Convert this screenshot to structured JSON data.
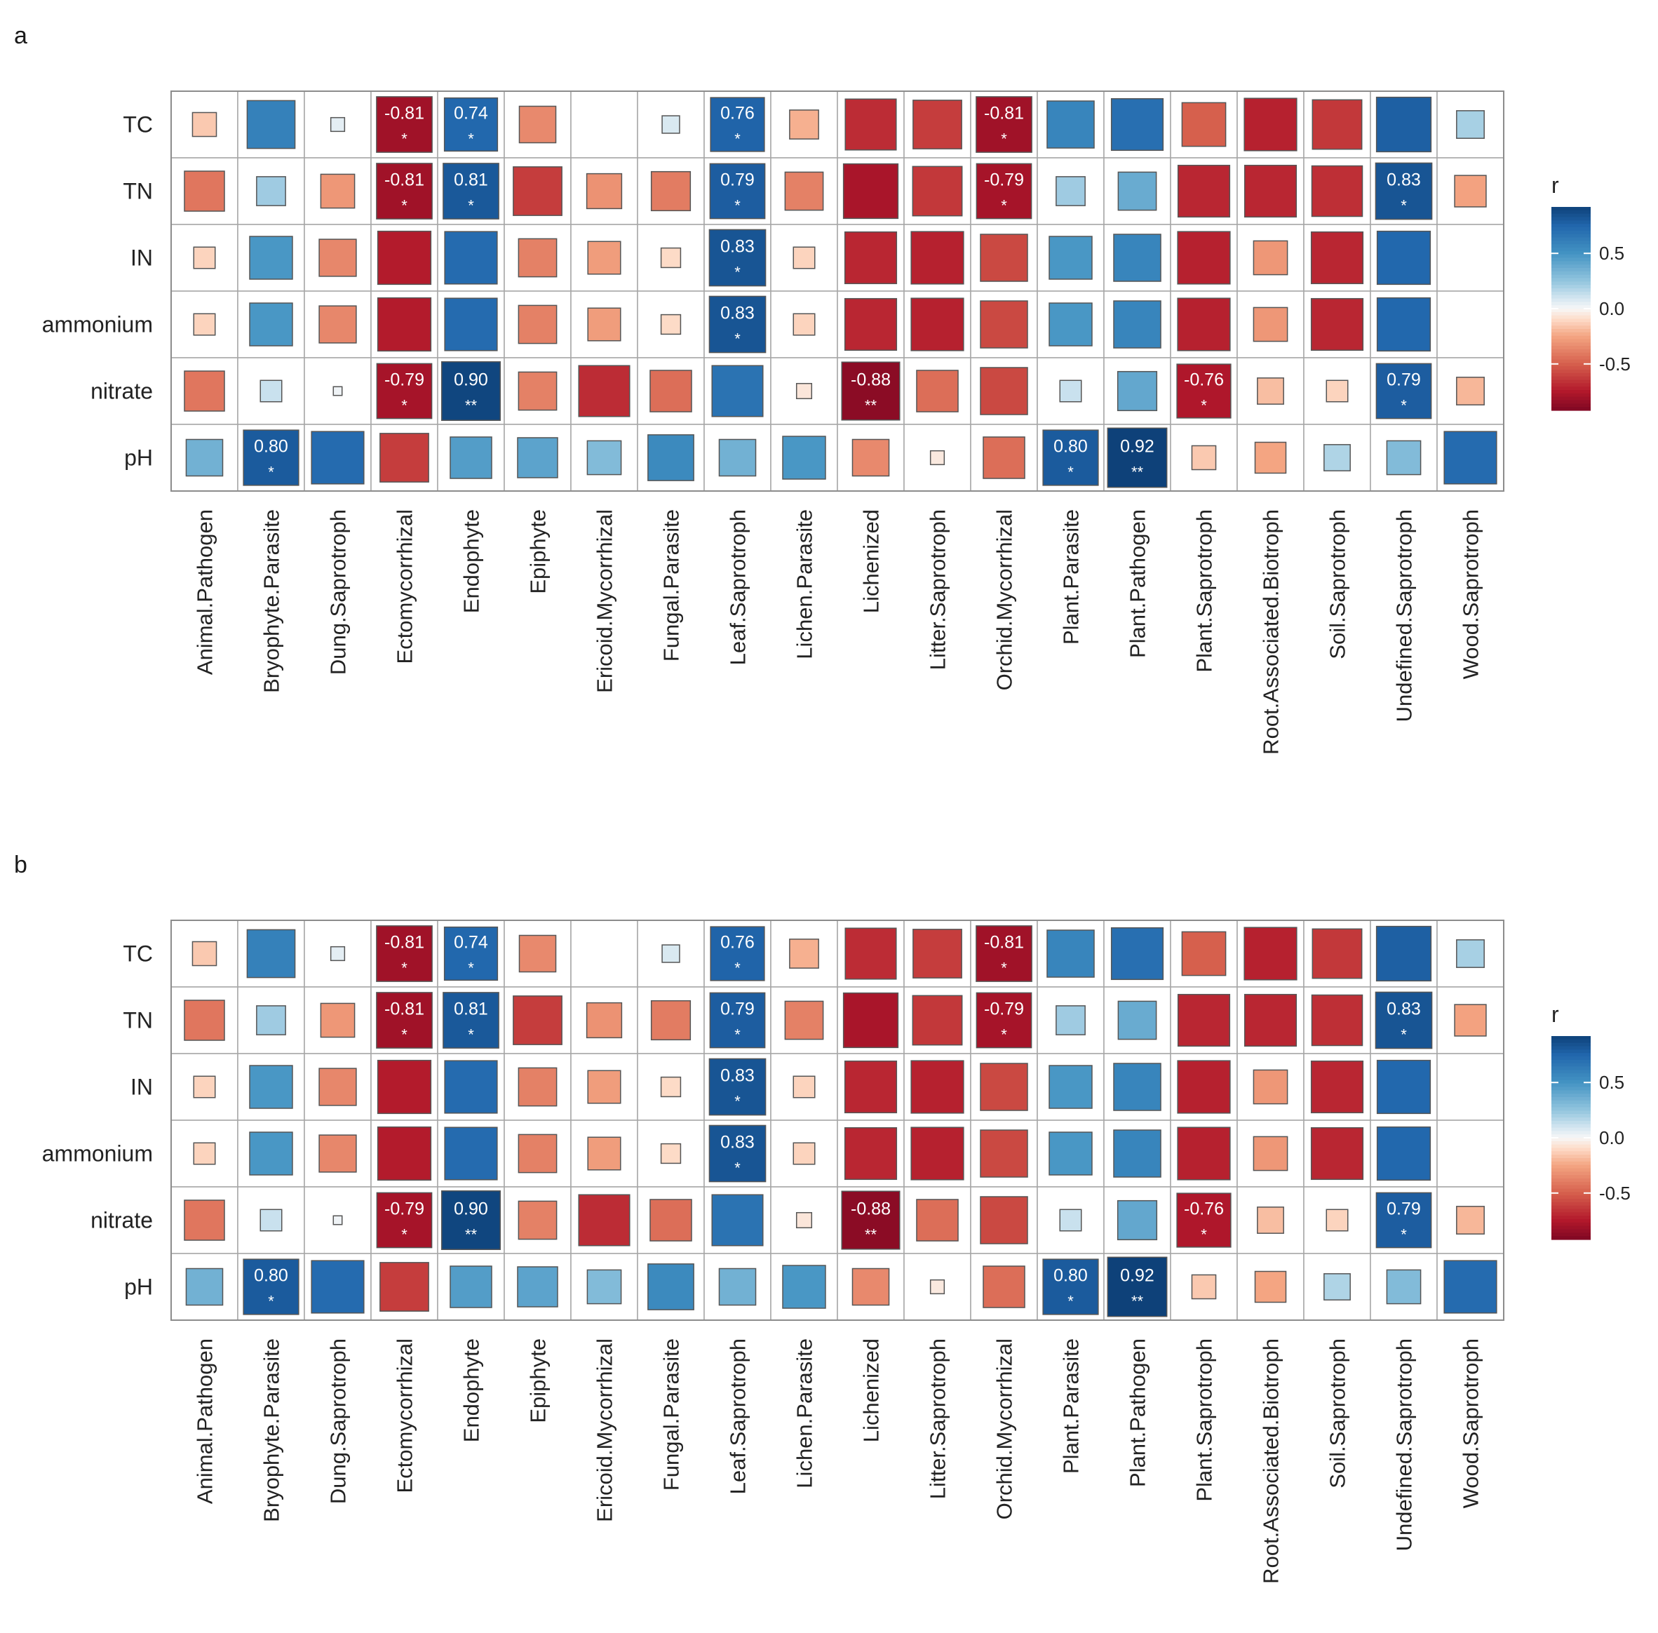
{
  "chart_data": [
    {
      "type": "heatmap",
      "panel_label": "a",
      "rows": [
        "TC",
        "TN",
        "IN",
        "ammonium",
        "nitrate",
        "pH"
      ],
      "columns": [
        "Animal.Pathogen",
        "Bryophyte.Parasite",
        "Dung.Saprotroph",
        "Ectomycorrhizal",
        "Endophyte",
        "Epiphyte",
        "Ericoid.Mycorrhizal",
        "Fungal.Parasite",
        "Leaf.Saprotroph",
        "Lichen.Parasite",
        "Lichenized",
        "Litter.Saprotroph",
        "Orchid.Mycorrhizal",
        "Plant.Parasite",
        "Plant.Pathogen",
        "Plant.Saprotroph",
        "Root.Associated.Biotroph",
        "Soil.Saprotroph",
        "Undefined.Saprotroph",
        "Wood.Saprotroph"
      ],
      "values": [
        [
          -0.15,
          0.6,
          0.05,
          -0.81,
          0.74,
          -0.35,
          0,
          0.08,
          0.76,
          -0.22,
          -0.68,
          -0.62,
          -0.81,
          0.58,
          0.7,
          -0.5,
          -0.72,
          -0.64,
          0.78,
          0.2
        ],
        [
          -0.42,
          0.22,
          -0.3,
          -0.81,
          0.81,
          -0.62,
          -0.32,
          -0.4,
          0.79,
          -0.38,
          -0.78,
          -0.64,
          -0.79,
          0.22,
          0.38,
          -0.7,
          -0.7,
          -0.67,
          0.83,
          -0.26
        ],
        [
          -0.12,
          0.48,
          -0.36,
          -0.74,
          0.72,
          -0.38,
          -0.28,
          -0.1,
          0.83,
          -0.12,
          -0.7,
          -0.72,
          -0.58,
          0.48,
          0.58,
          -0.72,
          -0.3,
          -0.7,
          0.74,
          0
        ],
        [
          -0.12,
          0.48,
          -0.36,
          -0.74,
          0.72,
          -0.38,
          -0.28,
          -0.1,
          0.83,
          -0.12,
          -0.7,
          -0.72,
          -0.58,
          0.48,
          0.58,
          -0.72,
          -0.3,
          -0.7,
          0.74,
          0
        ],
        [
          -0.42,
          0.12,
          0.02,
          -0.79,
          0.9,
          -0.38,
          -0.68,
          -0.45,
          0.68,
          -0.06,
          -0.88,
          -0.45,
          -0.58,
          0.12,
          0.4,
          -0.76,
          -0.18,
          -0.12,
          0.79,
          -0.2
        ],
        [
          0.35,
          0.8,
          0.72,
          -0.62,
          0.45,
          0.42,
          0.3,
          0.55,
          0.35,
          0.48,
          -0.35,
          -0.05,
          -0.45,
          0.8,
          0.92,
          -0.15,
          -0.25,
          0.18,
          0.3,
          0.72
        ]
      ],
      "labels": [
        [
          "",
          "",
          "",
          "-0.81",
          "0.74",
          "",
          "",
          "",
          "0.76",
          "",
          "",
          "",
          "-0.81",
          "",
          "",
          "",
          "",
          "",
          "",
          ""
        ],
        [
          "",
          "",
          "",
          "-0.81",
          "0.81",
          "",
          "",
          "",
          "0.79",
          "",
          "",
          "",
          "-0.79",
          "",
          "",
          "",
          "",
          "",
          "0.83",
          ""
        ],
        [
          "",
          "",
          "",
          "",
          "",
          "",
          "",
          "",
          "0.83",
          "",
          "",
          "",
          "",
          "",
          "",
          "",
          "",
          "",
          "",
          ""
        ],
        [
          "",
          "",
          "",
          "",
          "",
          "",
          "",
          "",
          "0.83",
          "",
          "",
          "",
          "",
          "",
          "",
          "",
          "",
          "",
          "",
          ""
        ],
        [
          "",
          "",
          "",
          "-0.79",
          "0.90",
          "",
          "",
          "",
          "",
          "",
          "-0.88",
          "",
          "",
          "",
          "",
          "-0.76",
          "",
          "",
          "0.79",
          ""
        ],
        [
          "",
          "0.80",
          "",
          "",
          "",
          "",
          "",
          "",
          "",
          "",
          "",
          "",
          "",
          "0.80",
          "0.92",
          "",
          "",
          "",
          "",
          ""
        ]
      ],
      "stars": [
        [
          "",
          "",
          "",
          "*",
          "*",
          "",
          "",
          "",
          "*",
          "",
          "",
          "",
          "*",
          "",
          "",
          "",
          "",
          "",
          "",
          ""
        ],
        [
          "",
          "",
          "",
          "*",
          "*",
          "",
          "",
          "",
          "*",
          "",
          "",
          "",
          "*",
          "",
          "",
          "",
          "",
          "",
          "*",
          ""
        ],
        [
          "",
          "",
          "",
          "",
          "",
          "",
          "",
          "",
          "*",
          "",
          "",
          "",
          "",
          "",
          "",
          "",
          "",
          "",
          "",
          ""
        ],
        [
          "",
          "",
          "",
          "",
          "",
          "",
          "",
          "",
          "*",
          "",
          "",
          "",
          "",
          "",
          "",
          "",
          "",
          "",
          "",
          ""
        ],
        [
          "",
          "",
          "",
          "*",
          "**",
          "",
          "",
          "",
          "",
          "",
          "**",
          "",
          "",
          "",
          "",
          "*",
          "",
          "",
          "*",
          ""
        ],
        [
          "",
          "*",
          "",
          "",
          "",
          "",
          "",
          "",
          "",
          "",
          "",
          "",
          "",
          "*",
          "**",
          "",
          "",
          "",
          "",
          ""
        ]
      ],
      "legend": {
        "title": "r",
        "ticks": [
          "0.5",
          "0.0",
          "-0.5"
        ],
        "tick_values": [
          0.5,
          0.0,
          -0.5
        ],
        "range": [
          -0.92,
          0.92
        ]
      }
    },
    {
      "type": "heatmap",
      "panel_label": "b",
      "rows": [
        "TC",
        "TN",
        "IN",
        "ammonium",
        "nitrate",
        "pH"
      ],
      "columns": [
        "Animal.Pathogen",
        "Bryophyte.Parasite",
        "Dung.Saprotroph",
        "Ectomycorrhizal",
        "Endophyte",
        "Epiphyte",
        "Ericoid.Mycorrhizal",
        "Fungal.Parasite",
        "Leaf.Saprotroph",
        "Lichen.Parasite",
        "Lichenized",
        "Litter.Saprotroph",
        "Orchid.Mycorrhizal",
        "Plant.Parasite",
        "Plant.Pathogen",
        "Plant.Saprotroph",
        "Root.Associated.Biotroph",
        "Soil.Saprotroph",
        "Undefined.Saprotroph",
        "Wood.Saprotroph"
      ],
      "values": [
        [
          -0.15,
          0.6,
          0.05,
          -0.81,
          0.74,
          -0.35,
          0,
          0.08,
          0.76,
          -0.22,
          -0.68,
          -0.62,
          -0.81,
          0.58,
          0.7,
          -0.5,
          -0.72,
          -0.64,
          0.78,
          0.2
        ],
        [
          -0.42,
          0.22,
          -0.3,
          -0.81,
          0.81,
          -0.62,
          -0.32,
          -0.4,
          0.79,
          -0.38,
          -0.78,
          -0.64,
          -0.79,
          0.22,
          0.38,
          -0.7,
          -0.7,
          -0.67,
          0.83,
          -0.26
        ],
        [
          -0.12,
          0.48,
          -0.36,
          -0.74,
          0.72,
          -0.38,
          -0.28,
          -0.1,
          0.83,
          -0.12,
          -0.7,
          -0.72,
          -0.58,
          0.48,
          0.58,
          -0.72,
          -0.3,
          -0.7,
          0.74,
          0
        ],
        [
          -0.12,
          0.48,
          -0.36,
          -0.74,
          0.72,
          -0.38,
          -0.28,
          -0.1,
          0.83,
          -0.12,
          -0.7,
          -0.72,
          -0.58,
          0.48,
          0.58,
          -0.72,
          -0.3,
          -0.7,
          0.74,
          0
        ],
        [
          -0.42,
          0.12,
          0.02,
          -0.79,
          0.9,
          -0.38,
          -0.68,
          -0.45,
          0.68,
          -0.06,
          -0.88,
          -0.45,
          -0.58,
          0.12,
          0.4,
          -0.76,
          -0.18,
          -0.12,
          0.79,
          -0.2
        ],
        [
          0.35,
          0.8,
          0.72,
          -0.62,
          0.45,
          0.42,
          0.3,
          0.55,
          0.35,
          0.48,
          -0.35,
          -0.05,
          -0.45,
          0.8,
          0.92,
          -0.15,
          -0.25,
          0.18,
          0.3,
          0.72
        ]
      ],
      "labels": [
        [
          "",
          "",
          "",
          "-0.81",
          "0.74",
          "",
          "",
          "",
          "0.76",
          "",
          "",
          "",
          "-0.81",
          "",
          "",
          "",
          "",
          "",
          "",
          ""
        ],
        [
          "",
          "",
          "",
          "-0.81",
          "0.81",
          "",
          "",
          "",
          "0.79",
          "",
          "",
          "",
          "-0.79",
          "",
          "",
          "",
          "",
          "",
          "0.83",
          ""
        ],
        [
          "",
          "",
          "",
          "",
          "",
          "",
          "",
          "",
          "0.83",
          "",
          "",
          "",
          "",
          "",
          "",
          "",
          "",
          "",
          "",
          ""
        ],
        [
          "",
          "",
          "",
          "",
          "",
          "",
          "",
          "",
          "0.83",
          "",
          "",
          "",
          "",
          "",
          "",
          "",
          "",
          "",
          "",
          ""
        ],
        [
          "",
          "",
          "",
          "-0.79",
          "0.90",
          "",
          "",
          "",
          "",
          "",
          "-0.88",
          "",
          "",
          "",
          "",
          "-0.76",
          "",
          "",
          "0.79",
          ""
        ],
        [
          "",
          "0.80",
          "",
          "",
          "",
          "",
          "",
          "",
          "",
          "",
          "",
          "",
          "",
          "0.80",
          "0.92",
          "",
          "",
          "",
          "",
          ""
        ]
      ],
      "stars": [
        [
          "",
          "",
          "",
          "*",
          "*",
          "",
          "",
          "",
          "*",
          "",
          "",
          "",
          "*",
          "",
          "",
          "",
          "",
          "",
          "",
          ""
        ],
        [
          "",
          "",
          "",
          "*",
          "*",
          "",
          "",
          "",
          "*",
          "",
          "",
          "",
          "*",
          "",
          "",
          "",
          "",
          "",
          "*",
          ""
        ],
        [
          "",
          "",
          "",
          "",
          "",
          "",
          "",
          "",
          "*",
          "",
          "",
          "",
          "",
          "",
          "",
          "",
          "",
          "",
          "",
          ""
        ],
        [
          "",
          "",
          "",
          "",
          "",
          "",
          "",
          "",
          "*",
          "",
          "",
          "",
          "",
          "",
          "",
          "",
          "",
          "",
          "",
          ""
        ],
        [
          "",
          "",
          "",
          "*",
          "**",
          "",
          "",
          "",
          "",
          "",
          "**",
          "",
          "",
          "",
          "",
          "*",
          "",
          "",
          "*",
          ""
        ],
        [
          "",
          "*",
          "",
          "",
          "",
          "",
          "",
          "",
          "",
          "",
          "",
          "",
          "",
          "*",
          "**",
          "",
          "",
          "",
          "",
          ""
        ]
      ],
      "legend": {
        "title": "r",
        "ticks": [
          "0.5",
          "0.0",
          "-0.5"
        ],
        "tick_values": [
          0.5,
          0.0,
          -0.5
        ],
        "range": [
          -0.92,
          0.92
        ]
      }
    }
  ]
}
